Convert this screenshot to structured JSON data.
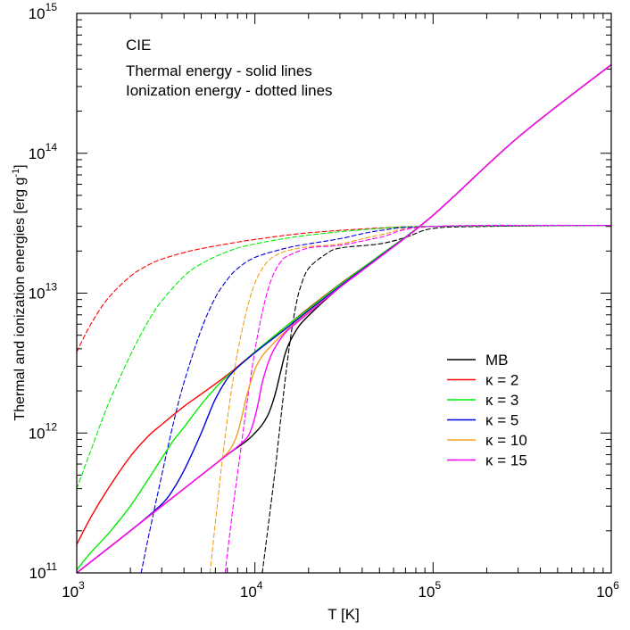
{
  "chart_data": {
    "type": "line",
    "xscale": "log",
    "yscale": "log",
    "xlim": [
      1000,
      1000000
    ],
    "ylim": [
      100000000000,
      1000000000000000
    ],
    "xlabel": "T [K]",
    "ylabel": {
      "text": "Thermal and ionization energies [erg g",
      "sup": "-1",
      "close": "]"
    },
    "xticks": [
      {
        "base": "10",
        "exp": "3",
        "value": 1000
      },
      {
        "base": "10",
        "exp": "4",
        "value": 10000
      },
      {
        "base": "10",
        "exp": "5",
        "value": 100000
      },
      {
        "base": "10",
        "exp": "6",
        "value": 1000000
      }
    ],
    "yticks": [
      {
        "base": "10",
        "exp": "11",
        "value": 100000000000
      },
      {
        "base": "10",
        "exp": "12",
        "value": 1000000000000
      },
      {
        "base": "10",
        "exp": "13",
        "value": 10000000000000
      },
      {
        "base": "10",
        "exp": "14",
        "value": 100000000000000
      },
      {
        "base": "10",
        "exp": "15",
        "value": 1000000000000000
      }
    ],
    "annotations": [
      "CIE",
      "Thermal energy - solid lines",
      "Ionization energy - dotted lines"
    ],
    "legend_position": "right",
    "series": [
      {
        "name": "MB",
        "color": "#000000",
        "thermal": {
          "x": [
            1000,
            2000,
            3000,
            5000,
            7000,
            9000,
            10000,
            11000,
            12000,
            13000,
            14000,
            15000,
            17000,
            20000,
            30000,
            50000,
            100000,
            300000,
            1000000
          ],
          "y": [
            100000000000.0,
            200000000000.0,
            300000000000.0,
            500000000000.0,
            700000000000.0,
            880000000000.0,
            1000000000000.0,
            1150000000000.0,
            1400000000000.0,
            1900000000000.0,
            2800000000000.0,
            3900000000000.0,
            5400000000000.0,
            6900000000000.0,
            11000000000000.0,
            18000000000000.0,
            36000000000000.0,
            130000000000000.0,
            430000000000000.0
          ]
        },
        "ionization": {
          "x": [
            11000,
            12000,
            13000,
            14000,
            15000,
            16000,
            17000,
            18000,
            20000,
            25000,
            30000,
            50000,
            70000,
            100000,
            200000,
            1000000
          ],
          "y": [
            100000000000.0,
            240000000000.0,
            550000000000.0,
            1300000000000.0,
            2800000000000.0,
            5200000000000.0,
            8200000000000.0,
            11000000000000.0,
            15000000000000.0,
            19000000000000.0,
            21000000000000.0,
            22500000000000.0,
            25000000000000.0,
            29000000000000.0,
            30000000000000.0,
            30500000000000.0
          ]
        }
      },
      {
        "name": "κ = 2",
        "color": "#ff0000",
        "thermal": {
          "x": [
            1000,
            1200,
            1500,
            2000,
            2500,
            3000,
            4000,
            5000,
            7000,
            10000,
            15000,
            20000,
            30000,
            50000,
            100000,
            300000,
            1000000
          ],
          "y": [
            160000000000.0,
            250000000000.0,
            400000000000.0,
            680000000000.0,
            940000000000.0,
            1150000000000.0,
            1550000000000.0,
            1900000000000.0,
            2600000000000.0,
            3800000000000.0,
            5800000000000.0,
            7800000000000.0,
            11600000000000.0,
            18500000000000.0,
            36000000000000.0,
            130000000000000.0,
            430000000000000.0
          ]
        },
        "ionization": {
          "x": [
            1000,
            1200,
            1500,
            2000,
            2500,
            3000,
            4000,
            5000,
            7000,
            10000,
            20000,
            50000,
            100000,
            1000000
          ],
          "y": [
            3800000000000.0,
            6000000000000.0,
            9200000000000.0,
            13200000000000.0,
            15800000000000.0,
            17500000000000.0,
            19500000000000.0,
            20800000000000.0,
            22500000000000.0,
            24200000000000.0,
            27000000000000.0,
            29200000000000.0,
            30000000000000.0,
            30500000000000.0
          ]
        }
      },
      {
        "name": "κ = 3",
        "color": "#00ee00",
        "thermal": {
          "x": [
            1000,
            1200,
            1500,
            2000,
            2500,
            3000,
            3500,
            4000,
            5000,
            6000,
            7000,
            8000,
            10000,
            12000,
            15000,
            20000,
            30000,
            50000,
            100000,
            300000,
            1000000
          ],
          "y": [
            105000000000.0,
            140000000000.0,
            190000000000.0,
            300000000000.0,
            460000000000.0,
            660000000000.0,
            890000000000.0,
            1100000000000.0,
            1600000000000.0,
            2100000000000.0,
            2550000000000.0,
            2950000000000.0,
            3800000000000.0,
            4600000000000.0,
            5800000000000.0,
            7700000000000.0,
            11500000000000.0,
            18500000000000.0,
            36000000000000.0,
            130000000000000.0,
            430000000000000.0
          ]
        },
        "ionization": {
          "x": [
            1000,
            1200,
            1500,
            2000,
            2500,
            3000,
            4000,
            5000,
            7000,
            10000,
            20000,
            50000,
            100000,
            1000000
          ],
          "y": [
            400000000000.0,
            750000000000.0,
            1600000000000.0,
            3600000000000.0,
            6200000000000.0,
            8800000000000.0,
            13200000000000.0,
            16200000000000.0,
            19800000000000.0,
            22500000000000.0,
            26000000000000.0,
            29000000000000.0,
            30000000000000.0,
            30500000000000.0
          ]
        }
      },
      {
        "name": "κ = 5",
        "color": "#0000dd",
        "thermal": {
          "x": [
            1000,
            2000,
            3000,
            3500,
            4000,
            4500,
            5000,
            5500,
            6000,
            7000,
            8000,
            10000,
            12000,
            15000,
            20000,
            30000,
            50000,
            100000,
            300000,
            1000000
          ],
          "y": [
            100000000000.0,
            200000000000.0,
            310000000000.0,
            400000000000.0,
            540000000000.0,
            740000000000.0,
            1000000000000.0,
            1350000000000.0,
            1750000000000.0,
            2450000000000.0,
            2950000000000.0,
            3750000000000.0,
            4500000000000.0,
            5600000000000.0,
            7500000000000.0,
            11200000000000.0,
            18200000000000.0,
            36000000000000.0,
            130000000000000.0,
            430000000000000.0
          ]
        },
        "ionization": {
          "x": [
            2300,
            2500,
            3000,
            3500,
            4000,
            5000,
            6000,
            7000,
            8000,
            10000,
            15000,
            20000,
            30000,
            50000,
            100000,
            1000000
          ],
          "y": [
            100000000000.0,
            170000000000.0,
            500000000000.0,
            1200000000000.0,
            2300000000000.0,
            5500000000000.0,
            9300000000000.0,
            12500000000000.0,
            15000000000000.0,
            18000000000000.0,
            21000000000000.0,
            22500000000000.0,
            24500000000000.0,
            28000000000000.0,
            30000000000000.0,
            30500000000000.0
          ]
        }
      },
      {
        "name": "κ = 10",
        "color": "#f0a020",
        "thermal": {
          "x": [
            1000,
            3000,
            5000,
            6000,
            7000,
            7500,
            8000,
            8500,
            9000,
            10000,
            11000,
            12000,
            13000,
            15000,
            20000,
            30000,
            50000,
            100000,
            300000,
            1000000
          ],
          "y": [
            100000000000.0,
            300000000000.0,
            500000000000.0,
            600000000000.0,
            720000000000.0,
            820000000000.0,
            1000000000000.0,
            1350000000000.0,
            1850000000000.0,
            2850000000000.0,
            3550000000000.0,
            4050000000000.0,
            4500000000000.0,
            5400000000000.0,
            7300000000000.0,
            11000000000000.0,
            18000000000000.0,
            36000000000000.0,
            130000000000000.0,
            430000000000000.0
          ]
        },
        "ionization": {
          "x": [
            5600,
            6000,
            6500,
            7000,
            7500,
            8000,
            9000,
            10000,
            11000,
            12000,
            13000,
            15000,
            20000,
            30000,
            50000,
            100000,
            1000000
          ],
          "y": [
            100000000000.0,
            230000000000.0,
            580000000000.0,
            1250000000000.0,
            2300000000000.0,
            3800000000000.0,
            7600000000000.0,
            11800000000000.0,
            15000000000000.0,
            17200000000000.0,
            18500000000000.0,
            20000000000000.0,
            21500000000000.0,
            22500000000000.0,
            26000000000000.0,
            30000000000000.0,
            30500000000000.0
          ]
        }
      },
      {
        "name": "κ = 15",
        "color": "#ff00ff",
        "thermal": {
          "x": [
            1000,
            3000,
            5000,
            7000,
            8000,
            9000,
            9500,
            10000,
            10500,
            11000,
            12000,
            13000,
            15000,
            20000,
            30000,
            50000,
            100000,
            300000,
            1000000
          ],
          "y": [
            100000000000.0,
            300000000000.0,
            500000000000.0,
            700000000000.0,
            800000000000.0,
            920000000000.0,
            1050000000000.0,
            1300000000000.0,
            1700000000000.0,
            2300000000000.0,
            3300000000000.0,
            4100000000000.0,
            5300000000000.0,
            7200000000000.0,
            11000000000000.0,
            18000000000000.0,
            36000000000000.0,
            130000000000000.0,
            430000000000000.0
          ]
        },
        "ionization": {
          "x": [
            6800,
            7500,
            8000,
            8500,
            9000,
            10000,
            11000,
            12000,
            13000,
            14000,
            15000,
            20000,
            30000,
            50000,
            100000,
            1000000
          ],
          "y": [
            100000000000.0,
            280000000000.0,
            520000000000.0,
            930000000000.0,
            1600000000000.0,
            3900000000000.0,
            7300000000000.0,
            11200000000000.0,
            14500000000000.0,
            16800000000000.0,
            18200000000000.0,
            21000000000000.0,
            22000000000000.0,
            25000000000000.0,
            30000000000000.0,
            30500000000000.0
          ]
        }
      }
    ]
  }
}
